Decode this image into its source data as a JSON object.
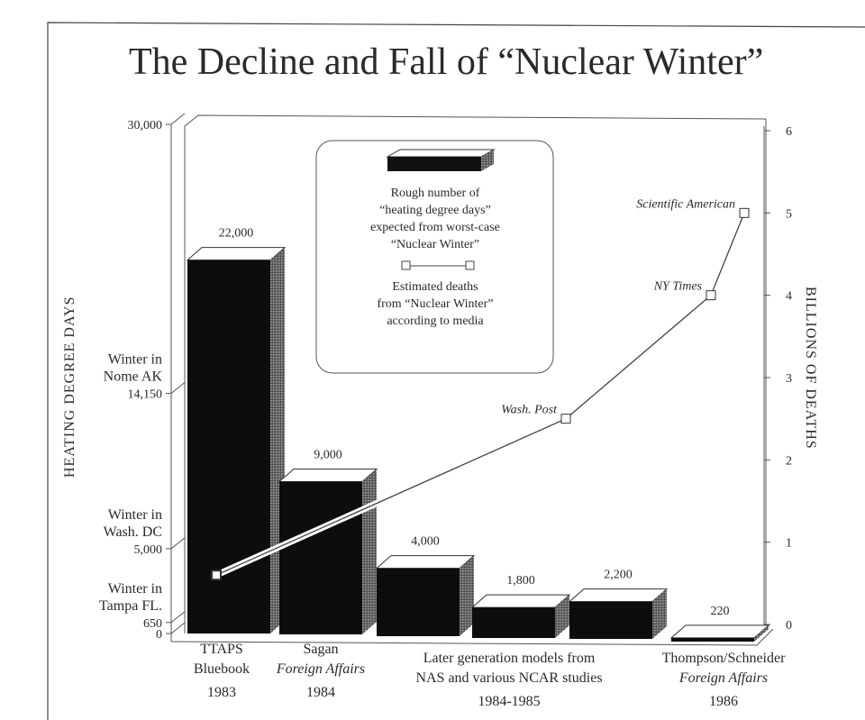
{
  "chart_data": {
    "type": "bar",
    "title": "The Decline and Fall of “Nuclear Winter”",
    "ylabel": "HEATING DEGREE DAYS",
    "y2label": "BILLIONS OF DEATHS",
    "ylim": [
      0,
      30000
    ],
    "y2lim": [
      0,
      6
    ],
    "yticks": [
      {
        "value": 30000,
        "label": "30,000",
        "note": []
      },
      {
        "value": 14150,
        "label": "14,150",
        "note": [
          "Winter in",
          "Nome AK"
        ]
      },
      {
        "value": 5000,
        "label": "5,000",
        "note": [
          "Winter in",
          "Wash. DC"
        ]
      },
      {
        "value": 650,
        "label": "650",
        "note": [
          "Winter in",
          "Tampa FL."
        ]
      },
      {
        "value": 0,
        "label": "0",
        "note": []
      }
    ],
    "y2ticks": [
      "0",
      "1",
      "2",
      "3",
      "4",
      "5",
      "6"
    ],
    "bars": [
      {
        "value": 22000,
        "label": "22,000"
      },
      {
        "value": 9000,
        "label": "9,000"
      },
      {
        "value": 4000,
        "label": "4,000"
      },
      {
        "value": 1800,
        "label": "1,800"
      },
      {
        "value": 2200,
        "label": "2,200"
      },
      {
        "value": 220,
        "label": "220"
      }
    ],
    "categories": [
      {
        "lines": [
          {
            "t": "TTAPS",
            "i": false
          },
          {
            "t": "Bluebook",
            "i": false
          },
          {
            "t": "1983",
            "i": false
          }
        ]
      },
      {
        "lines": [
          {
            "t": "Sagan",
            "i": false
          },
          {
            "t": "Foreign Affairs",
            "i": true
          },
          {
            "t": "1984",
            "i": false
          }
        ]
      },
      {
        "lines": [
          {
            "t": "Later generation models from",
            "i": false
          },
          {
            "t": "NAS and various NCAR studies",
            "i": false
          },
          {
            "t": "1984-1985",
            "i": false
          }
        ]
      },
      {
        "lines": [
          {
            "t": "Thompson/Schneider",
            "i": false
          },
          {
            "t": "Foreign Affairs",
            "i": true
          },
          {
            "t": "1986",
            "i": false
          }
        ]
      }
    ],
    "line_series": {
      "name": "Estimated deaths from “Nuclear Winter” according to media",
      "unit": "billions",
      "points": [
        {
          "label": "",
          "value": 0.6
        },
        {
          "label": "Wash. Post",
          "value": 2.5
        },
        {
          "label": "NY Times",
          "value": 4
        },
        {
          "label": "Scientific American",
          "value": 5
        }
      ]
    },
    "legend": {
      "placement": "top-center",
      "bar_text": [
        "Rough number of",
        "“heating degree days”",
        "expected from worst-case",
        "“Nuclear Winter”"
      ],
      "line_text": [
        "Estimated deaths",
        "from “Nuclear Winter”",
        "according to media"
      ]
    },
    "grid": false
  }
}
